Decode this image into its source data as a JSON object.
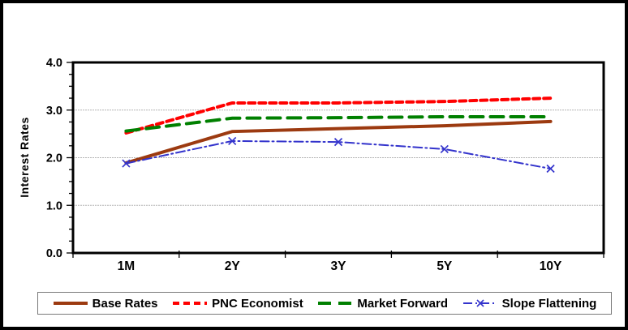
{
  "chart_data": {
    "type": "line",
    "title": "",
    "xlabel": "",
    "ylabel": "Interest Rates",
    "categories": [
      "1M",
      "2Y",
      "3Y",
      "5Y",
      "10Y"
    ],
    "ylim": [
      0.0,
      4.0
    ],
    "ytick_values": [
      0,
      1,
      2,
      3,
      4
    ],
    "ytick_labels": [
      "0.0",
      "1.0",
      "2.0",
      "3.0",
      "4.0"
    ],
    "minor_tick_step": 0.25,
    "grid_values": [
      1,
      2,
      3
    ],
    "grid": "horizontal-only",
    "legend_position": "bottom",
    "series": [
      {
        "name": "Base Rates",
        "color": "#9C3A10",
        "style": "solid",
        "marker": "none",
        "values": [
          1.89,
          2.55,
          2.61,
          2.67,
          2.76
        ]
      },
      {
        "name": "PNC Economist",
        "color": "#FF0000",
        "style": "dash",
        "marker": "none",
        "values": [
          2.52,
          3.15,
          3.15,
          3.18,
          3.25
        ]
      },
      {
        "name": "Market Forward",
        "color": "#008000",
        "style": "long-dash",
        "marker": "none",
        "values": [
          2.56,
          2.83,
          2.84,
          2.86,
          2.86
        ]
      },
      {
        "name": "Slope Flattening",
        "color": "#3333CC",
        "style": "dash-dot",
        "marker": "x",
        "values": [
          1.88,
          2.35,
          2.33,
          2.18,
          1.77
        ]
      }
    ]
  },
  "colors": {
    "frame_border": "#000000",
    "plot_border": "#000000",
    "gridline": "#B3B3B3",
    "background": "#FFFFFF",
    "legend_border": "#7A7A7A"
  }
}
